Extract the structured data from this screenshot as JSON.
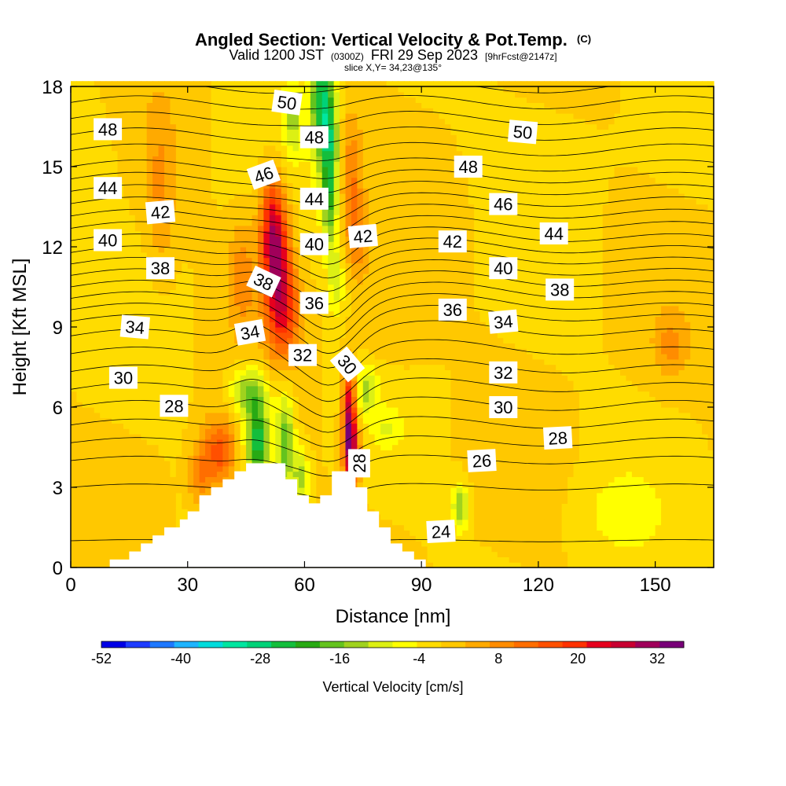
{
  "chart_data": {
    "type": "heatmap",
    "title": "Angled Section: Vertical Velocity & Pot.Temp.",
    "title_mark": "(C)",
    "subtitle_parts": [
      "Valid 1200 JST",
      "(0300Z)",
      "FRI 29 Sep 2023",
      "[9hrFcst@2147z]"
    ],
    "slice_label": "slice X,Y= 34,23@135°",
    "xlabel": "Distance [nm]",
    "ylabel": "Height [Kft MSL]",
    "xlim": [
      0,
      165
    ],
    "ylim": [
      0,
      18
    ],
    "x_ticks": [
      0,
      30,
      60,
      90,
      120,
      150
    ],
    "y_ticks": [
      0,
      3,
      6,
      9,
      12,
      15,
      18
    ],
    "colorbar": {
      "label": "Vertical Velocity [cm/s]",
      "min": -52,
      "max": 36,
      "step": 4,
      "tick_labels": [
        "-52",
        "-40",
        "-28",
        "-16",
        "-4",
        "8",
        "20",
        "32"
      ],
      "colors": [
        "#0000e6",
        "#1e3cff",
        "#1e78ff",
        "#1eb4ff",
        "#00dcdc",
        "#00e6a0",
        "#00d278",
        "#14be3c",
        "#28aa14",
        "#64c31e",
        "#a0d21e",
        "#dcf014",
        "#ffff00",
        "#ffdc00",
        "#ffc800",
        "#ffaa00",
        "#ff8c00",
        "#ff6e00",
        "#ff5000",
        "#ff3200",
        "#e6001e",
        "#c80032",
        "#a0005a",
        "#780078"
      ]
    },
    "theta_field": {
      "description": "potential temperature contours, deg C",
      "levels": [
        24,
        25,
        26,
        27,
        28,
        29,
        30,
        31,
        32,
        33,
        34,
        35,
        36,
        37,
        38,
        39,
        40,
        41,
        42,
        43,
        44,
        45,
        46,
        47,
        48,
        49,
        50,
        51,
        52
      ],
      "base_profile": {
        "height_kft": [
          0,
          3,
          4,
          6,
          9,
          12,
          15,
          18
        ],
        "theta": [
          23.5,
          25,
          26,
          29,
          33.5,
          40.5,
          47,
          52
        ]
      }
    },
    "contour_labels": [
      {
        "text": "48",
        "x": 9.5,
        "y": 16.4,
        "angle": 0
      },
      {
        "text": "44",
        "x": 9.5,
        "y": 14.2,
        "angle": 0
      },
      {
        "text": "40",
        "x": 9.5,
        "y": 12.25,
        "angle": 0
      },
      {
        "text": "42",
        "x": 23,
        "y": 13.3,
        "angle": -5
      },
      {
        "text": "38",
        "x": 23,
        "y": 11.2,
        "angle": 0
      },
      {
        "text": "34",
        "x": 16.5,
        "y": 9.0,
        "angle": 5
      },
      {
        "text": "30",
        "x": 13.5,
        "y": 7.1,
        "angle": 0
      },
      {
        "text": "28",
        "x": 26.5,
        "y": 6.05,
        "angle": 0
      },
      {
        "text": "50",
        "x": 55.5,
        "y": 17.4,
        "angle": 8
      },
      {
        "text": "48",
        "x": 62.5,
        "y": 16.1,
        "angle": 0
      },
      {
        "text": "46",
        "x": 49.5,
        "y": 14.7,
        "angle": -20
      },
      {
        "text": "44",
        "x": 62.5,
        "y": 13.8,
        "angle": 0
      },
      {
        "text": "40",
        "x": 62.5,
        "y": 12.1,
        "angle": 0
      },
      {
        "text": "38",
        "x": 49.5,
        "y": 10.7,
        "angle": 25
      },
      {
        "text": "36",
        "x": 62.5,
        "y": 9.9,
        "angle": 0
      },
      {
        "text": "34",
        "x": 46,
        "y": 8.8,
        "angle": -10
      },
      {
        "text": "32",
        "x": 59.5,
        "y": 7.95,
        "angle": 0
      },
      {
        "text": "42",
        "x": 75,
        "y": 12.4,
        "angle": -5
      },
      {
        "text": "30",
        "x": 71,
        "y": 7.6,
        "angle": 50
      },
      {
        "text": "28",
        "x": 74,
        "y": 3.9,
        "angle": -90
      },
      {
        "text": "50",
        "x": 116,
        "y": 16.3,
        "angle": 5
      },
      {
        "text": "48",
        "x": 102,
        "y": 15.0,
        "angle": 0
      },
      {
        "text": "46",
        "x": 111,
        "y": 13.6,
        "angle": 0
      },
      {
        "text": "42",
        "x": 98,
        "y": 12.2,
        "angle": 0
      },
      {
        "text": "44",
        "x": 124,
        "y": 12.5,
        "angle": 0
      },
      {
        "text": "40",
        "x": 111,
        "y": 11.2,
        "angle": 0
      },
      {
        "text": "38",
        "x": 125.5,
        "y": 10.4,
        "angle": 0
      },
      {
        "text": "36",
        "x": 98,
        "y": 9.65,
        "angle": 0
      },
      {
        "text": "34",
        "x": 111,
        "y": 9.2,
        "angle": -5
      },
      {
        "text": "32",
        "x": 111,
        "y": 7.3,
        "angle": 0
      },
      {
        "text": "30",
        "x": 111,
        "y": 6.0,
        "angle": 0
      },
      {
        "text": "28",
        "x": 125,
        "y": 4.85,
        "angle": -3
      },
      {
        "text": "26",
        "x": 105.5,
        "y": 4.0,
        "angle": -3
      },
      {
        "text": "24",
        "x": 95,
        "y": 1.35,
        "angle": -3
      }
    ],
    "terrain_blocks": [
      [
        10,
        0.3
      ],
      [
        15,
        0.6
      ],
      [
        18,
        0.9
      ],
      [
        21,
        1.2
      ],
      [
        24,
        1.5
      ],
      [
        28,
        1.8
      ],
      [
        30,
        2.1
      ],
      [
        33,
        2.7
      ],
      [
        36,
        3.0
      ],
      [
        39,
        3.3
      ],
      [
        42,
        3.6
      ],
      [
        45,
        3.9
      ],
      [
        49,
        3.9
      ],
      [
        52,
        3.9
      ],
      [
        55,
        3.3
      ],
      [
        58,
        2.7
      ],
      [
        61,
        2.4
      ],
      [
        64,
        2.7
      ],
      [
        67,
        3.6
      ],
      [
        70,
        3.6
      ],
      [
        73,
        3.0
      ],
      [
        76,
        2.1
      ],
      [
        79,
        1.5
      ],
      [
        82,
        0.9
      ],
      [
        85,
        0.6
      ],
      [
        88,
        0.3
      ]
    ],
    "w_features": [
      {
        "x": 53,
        "y": 11.0,
        "sx": 2.5,
        "sy": 1.8,
        "w": 28
      },
      {
        "x": 51.5,
        "y": 13.0,
        "sx": 2.2,
        "sy": 1.4,
        "w": 18
      },
      {
        "x": 56,
        "y": 9.5,
        "sx": 2.5,
        "sy": 1.2,
        "w": 12
      },
      {
        "x": 44,
        "y": 11.0,
        "sx": 2.5,
        "sy": 1.5,
        "w": 10
      },
      {
        "x": 23,
        "y": 14.0,
        "sx": 2.5,
        "sy": 2.2,
        "w": 8
      },
      {
        "x": 72,
        "y": 14.5,
        "sx": 2.0,
        "sy": 1.7,
        "w": 12
      },
      {
        "x": 74,
        "y": 12.0,
        "sx": 2.0,
        "sy": 1.0,
        "w": 8
      },
      {
        "x": 71.5,
        "y": 5.5,
        "sx": 1.2,
        "sy": 1.4,
        "w": 34
      },
      {
        "x": 72.5,
        "y": 4.2,
        "sx": 1.5,
        "sy": 0.8,
        "w": 18
      },
      {
        "x": 38,
        "y": 4.3,
        "sx": 3.0,
        "sy": 0.9,
        "w": 18
      },
      {
        "x": 33,
        "y": 3.4,
        "sx": 2.0,
        "sy": 0.8,
        "w": 10
      },
      {
        "x": 154,
        "y": 8.3,
        "sx": 3.0,
        "sy": 0.8,
        "w": 8
      },
      {
        "x": 84,
        "y": 8.6,
        "sx": 6.0,
        "sy": 0.8,
        "w": 5
      },
      {
        "x": 64,
        "y": 17.5,
        "sx": 1.8,
        "sy": 1.6,
        "w": -24
      },
      {
        "x": 66.5,
        "y": 16.0,
        "sx": 1.6,
        "sy": 1.6,
        "w": -22
      },
      {
        "x": 66.5,
        "y": 13.5,
        "sx": 1.4,
        "sy": 1.2,
        "w": -14
      },
      {
        "x": 57,
        "y": 16.8,
        "sx": 1.8,
        "sy": 1.0,
        "w": -12
      },
      {
        "x": 68,
        "y": 10.8,
        "sx": 1.6,
        "sy": 1.0,
        "w": -10
      },
      {
        "x": 48,
        "y": 4.7,
        "sx": 2.2,
        "sy": 1.0,
        "w": -28
      },
      {
        "x": 46,
        "y": 6.6,
        "sx": 3.5,
        "sy": 0.7,
        "w": -18
      },
      {
        "x": 55,
        "y": 4.7,
        "sx": 1.6,
        "sy": 1.4,
        "w": -20
      },
      {
        "x": 59,
        "y": 3.4,
        "sx": 1.4,
        "sy": 0.8,
        "w": -14
      },
      {
        "x": 76,
        "y": 6.6,
        "sx": 1.8,
        "sy": 0.6,
        "w": -12
      },
      {
        "x": 81,
        "y": 5.2,
        "sx": 2.5,
        "sy": 0.5,
        "w": -6
      },
      {
        "x": 100,
        "y": 2.3,
        "sx": 1.5,
        "sy": 0.6,
        "w": -16
      },
      {
        "x": 140,
        "y": 2.0,
        "sx": 8.0,
        "sy": 1.2,
        "w": -4
      },
      {
        "x": 120,
        "y": 15.8,
        "sx": 10.0,
        "sy": 1.2,
        "w": -3
      },
      {
        "x": 8,
        "y": 15.5,
        "sx": 4.0,
        "sy": 2.0,
        "w": -2
      }
    ],
    "w_background": 4
  }
}
